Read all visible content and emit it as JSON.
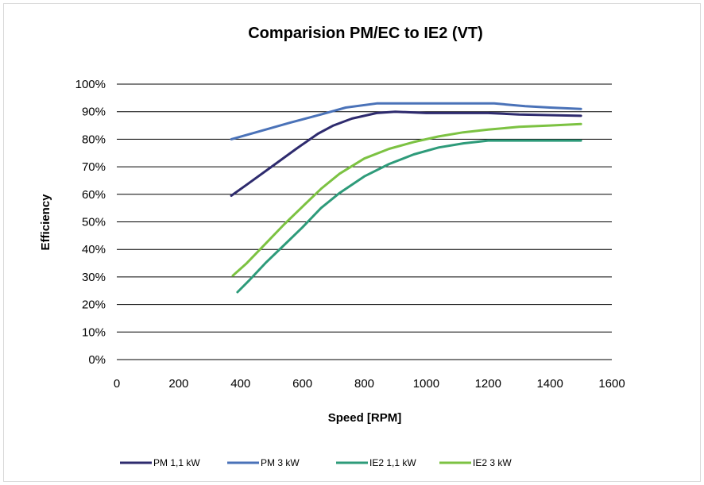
{
  "chart_data": {
    "type": "line",
    "title": "Comparision PM/EC to IE2 (VT)",
    "xlabel": "Speed [RPM]",
    "ylabel": "Efficiency",
    "xlim": [
      0,
      1600
    ],
    "ylim": [
      0,
      100
    ],
    "x_ticks": [
      0,
      200,
      400,
      600,
      800,
      1000,
      1200,
      1400,
      1600
    ],
    "y_ticks": [
      0,
      10,
      20,
      30,
      40,
      50,
      60,
      70,
      80,
      90,
      100
    ],
    "x_tick_labels": [
      "0",
      "200",
      "400",
      "600",
      "800",
      "1000",
      "1200",
      "1400",
      "1600"
    ],
    "y_tick_labels": [
      "0%",
      "10%",
      "20%",
      "30%",
      "40%",
      "50%",
      "60%",
      "70%",
      "80%",
      "90%",
      "100%"
    ],
    "y_unit": "%",
    "grid": "horizontal",
    "legend_position": "bottom",
    "series": [
      {
        "name": "PM 1,1 kW",
        "color": "#2e2b6e",
        "points": [
          [
            370,
            59.5
          ],
          [
            420,
            63.5
          ],
          [
            500,
            70
          ],
          [
            580,
            76.5
          ],
          [
            650,
            82
          ],
          [
            700,
            85
          ],
          [
            760,
            87.5
          ],
          [
            840,
            89.5
          ],
          [
            900,
            90
          ],
          [
            1000,
            89.5
          ],
          [
            1100,
            89.5
          ],
          [
            1200,
            89.5
          ],
          [
            1300,
            89
          ],
          [
            1500,
            88.5
          ]
        ]
      },
      {
        "name": "PM 3 kW",
        "color": "#4a72b8",
        "points": [
          [
            370,
            80
          ],
          [
            450,
            82.5
          ],
          [
            560,
            86
          ],
          [
            660,
            89
          ],
          [
            740,
            91.5
          ],
          [
            840,
            93
          ],
          [
            900,
            93
          ],
          [
            1000,
            93
          ],
          [
            1100,
            93
          ],
          [
            1220,
            93
          ],
          [
            1320,
            92
          ],
          [
            1400,
            91.5
          ],
          [
            1500,
            91
          ]
        ]
      },
      {
        "name": "IE2 1,1 kW",
        "color": "#2e9b7a",
        "points": [
          [
            390,
            24.5
          ],
          [
            430,
            29
          ],
          [
            480,
            35
          ],
          [
            540,
            41.5
          ],
          [
            600,
            48
          ],
          [
            660,
            55
          ],
          [
            720,
            60.5
          ],
          [
            800,
            66.5
          ],
          [
            880,
            71
          ],
          [
            960,
            74.5
          ],
          [
            1040,
            77
          ],
          [
            1120,
            78.5
          ],
          [
            1200,
            79.5
          ],
          [
            1300,
            79.5
          ],
          [
            1500,
            79.5
          ]
        ]
      },
      {
        "name": "IE2 3 kW",
        "color": "#7cc242",
        "points": [
          [
            375,
            30.5
          ],
          [
            420,
            35
          ],
          [
            480,
            42
          ],
          [
            540,
            49
          ],
          [
            600,
            55.5
          ],
          [
            660,
            62
          ],
          [
            720,
            67.5
          ],
          [
            800,
            73
          ],
          [
            880,
            76.5
          ],
          [
            960,
            79
          ],
          [
            1040,
            81
          ],
          [
            1120,
            82.5
          ],
          [
            1200,
            83.5
          ],
          [
            1300,
            84.5
          ],
          [
            1400,
            85
          ],
          [
            1500,
            85.5
          ]
        ]
      }
    ]
  }
}
